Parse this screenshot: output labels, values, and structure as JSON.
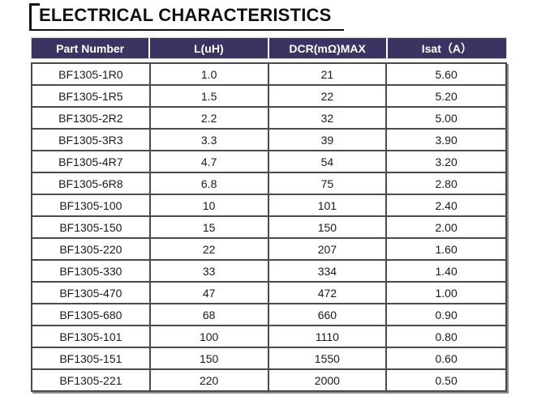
{
  "title": {
    "text": "ELECTRICAL CHARACTERISTICS"
  },
  "colors": {
    "title_text": "#111111",
    "header_bg": "#3b3462",
    "header_text": "#ffffff",
    "header_divider": "#ffffff",
    "body_border": "#4a4a4a",
    "shadow": "#8a8a8a",
    "text": "#1a1a1a",
    "row_bg": "#ffffff"
  },
  "table": {
    "columns": [
      "Part Number",
      "L(uH)",
      "DCR(mΩ)MAX",
      "Isat（A）"
    ],
    "rows": [
      [
        "BF1305-1R0",
        "1.0",
        "21",
        "5.60"
      ],
      [
        "BF1305-1R5",
        "1.5",
        "22",
        "5.20"
      ],
      [
        "BF1305-2R2",
        "2.2",
        "32",
        "5.00"
      ],
      [
        "BF1305-3R3",
        "3.3",
        "39",
        "3.90"
      ],
      [
        "BF1305-4R7",
        "4.7",
        "54",
        "3.20"
      ],
      [
        "BF1305-6R8",
        "6.8",
        "75",
        "2.80"
      ],
      [
        "BF1305-100",
        "10",
        "101",
        "2.40"
      ],
      [
        "BF1305-150",
        "15",
        "150",
        "2.00"
      ],
      [
        "BF1305-220",
        "22",
        "207",
        "1.60"
      ],
      [
        "BF1305-330",
        "33",
        "334",
        "1.40"
      ],
      [
        "BF1305-470",
        "47",
        "472",
        "1.00"
      ],
      [
        "BF1305-680",
        "68",
        "660",
        "0.90"
      ],
      [
        "BF1305-101",
        "100",
        "1110",
        "0.80"
      ],
      [
        "BF1305-151",
        "150",
        "1550",
        "0.60"
      ],
      [
        "BF1305-221",
        "220",
        "2000",
        "0.50"
      ]
    ]
  }
}
